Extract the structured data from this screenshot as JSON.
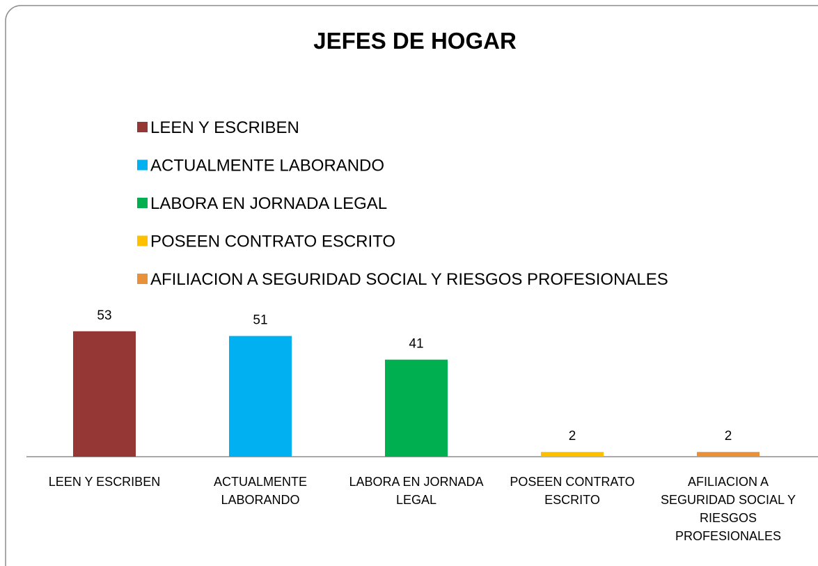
{
  "chart_data": {
    "type": "bar",
    "title": "JEFES DE HOGAR",
    "categories": [
      "LEEN Y ESCRIBEN",
      "ACTUALMENTE LABORANDO",
      "LABORA EN JORNADA LEGAL",
      "POSEEN CONTRATO ESCRITO",
      "AFILIACION A SEGURIDAD SOCIAL Y RIESGOS PROFESIONALES"
    ],
    "values": [
      53,
      51,
      41,
      2,
      2
    ],
    "colors": [
      "#953735",
      "#00b0f0",
      "#00b050",
      "#ffc000",
      "#e7923a"
    ],
    "ylim": [
      0,
      60
    ],
    "legend": "top"
  }
}
